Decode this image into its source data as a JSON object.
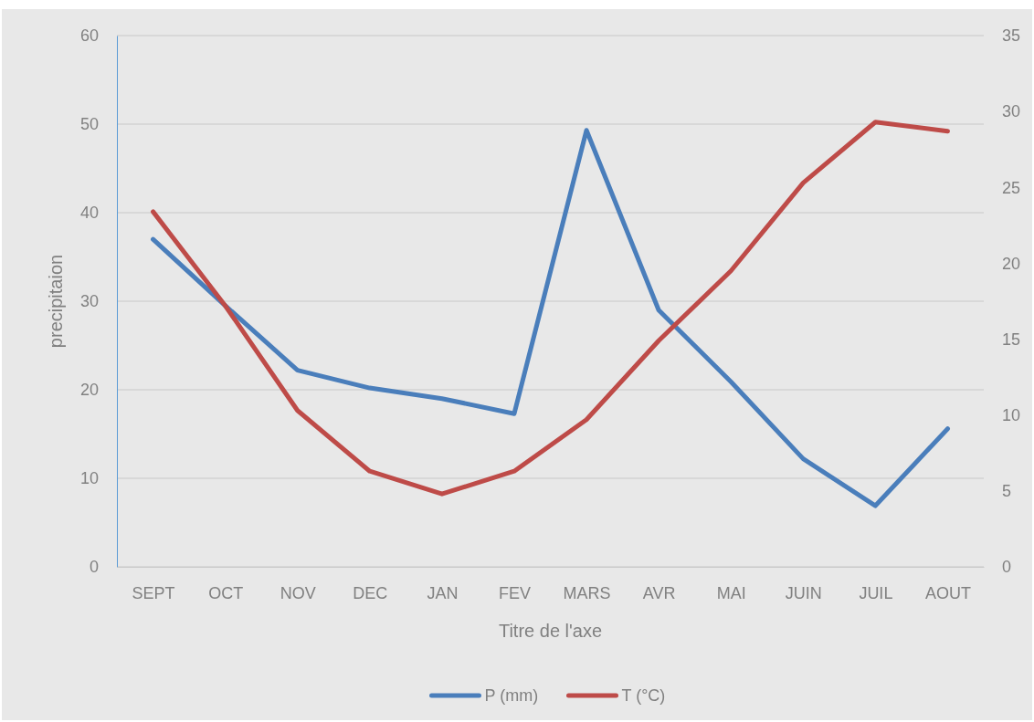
{
  "chart_data": {
    "type": "line",
    "xlabel": "Titre de l'axe",
    "ylabel": "precipitaion",
    "categories": [
      "SEPT",
      "OCT",
      "NOV",
      "DEC",
      "JAN",
      "FEV",
      "MARS",
      "AVR",
      "MAI",
      "JUIN",
      "JUIL",
      "AOUT"
    ],
    "series": [
      {
        "name": "P (mm)",
        "color": "#4a7ebb",
        "values": [
          37.0,
          29.5,
          22.2,
          20.2,
          19.0,
          17.3,
          49.3,
          29.0,
          20.9,
          12.2,
          6.9,
          15.6
        ]
      },
      {
        "name": "T (°C)",
        "color": "#be4b48",
        "axis": "y2",
        "values": [
          23.4,
          17.2,
          10.3,
          6.3,
          4.8,
          6.3,
          9.7,
          14.9,
          19.5,
          25.3,
          29.3,
          28.7
        ]
      }
    ],
    "ylim": [
      0,
      60
    ],
    "yticks": [
      0,
      10,
      20,
      30,
      40,
      50,
      60
    ],
    "y2lim": [
      0,
      35
    ],
    "y2ticks": [
      0,
      5,
      10,
      15,
      20,
      25,
      30,
      35
    ],
    "grid": "y",
    "legend": "bottom",
    "marker": "none",
    "line_style": "solid"
  }
}
